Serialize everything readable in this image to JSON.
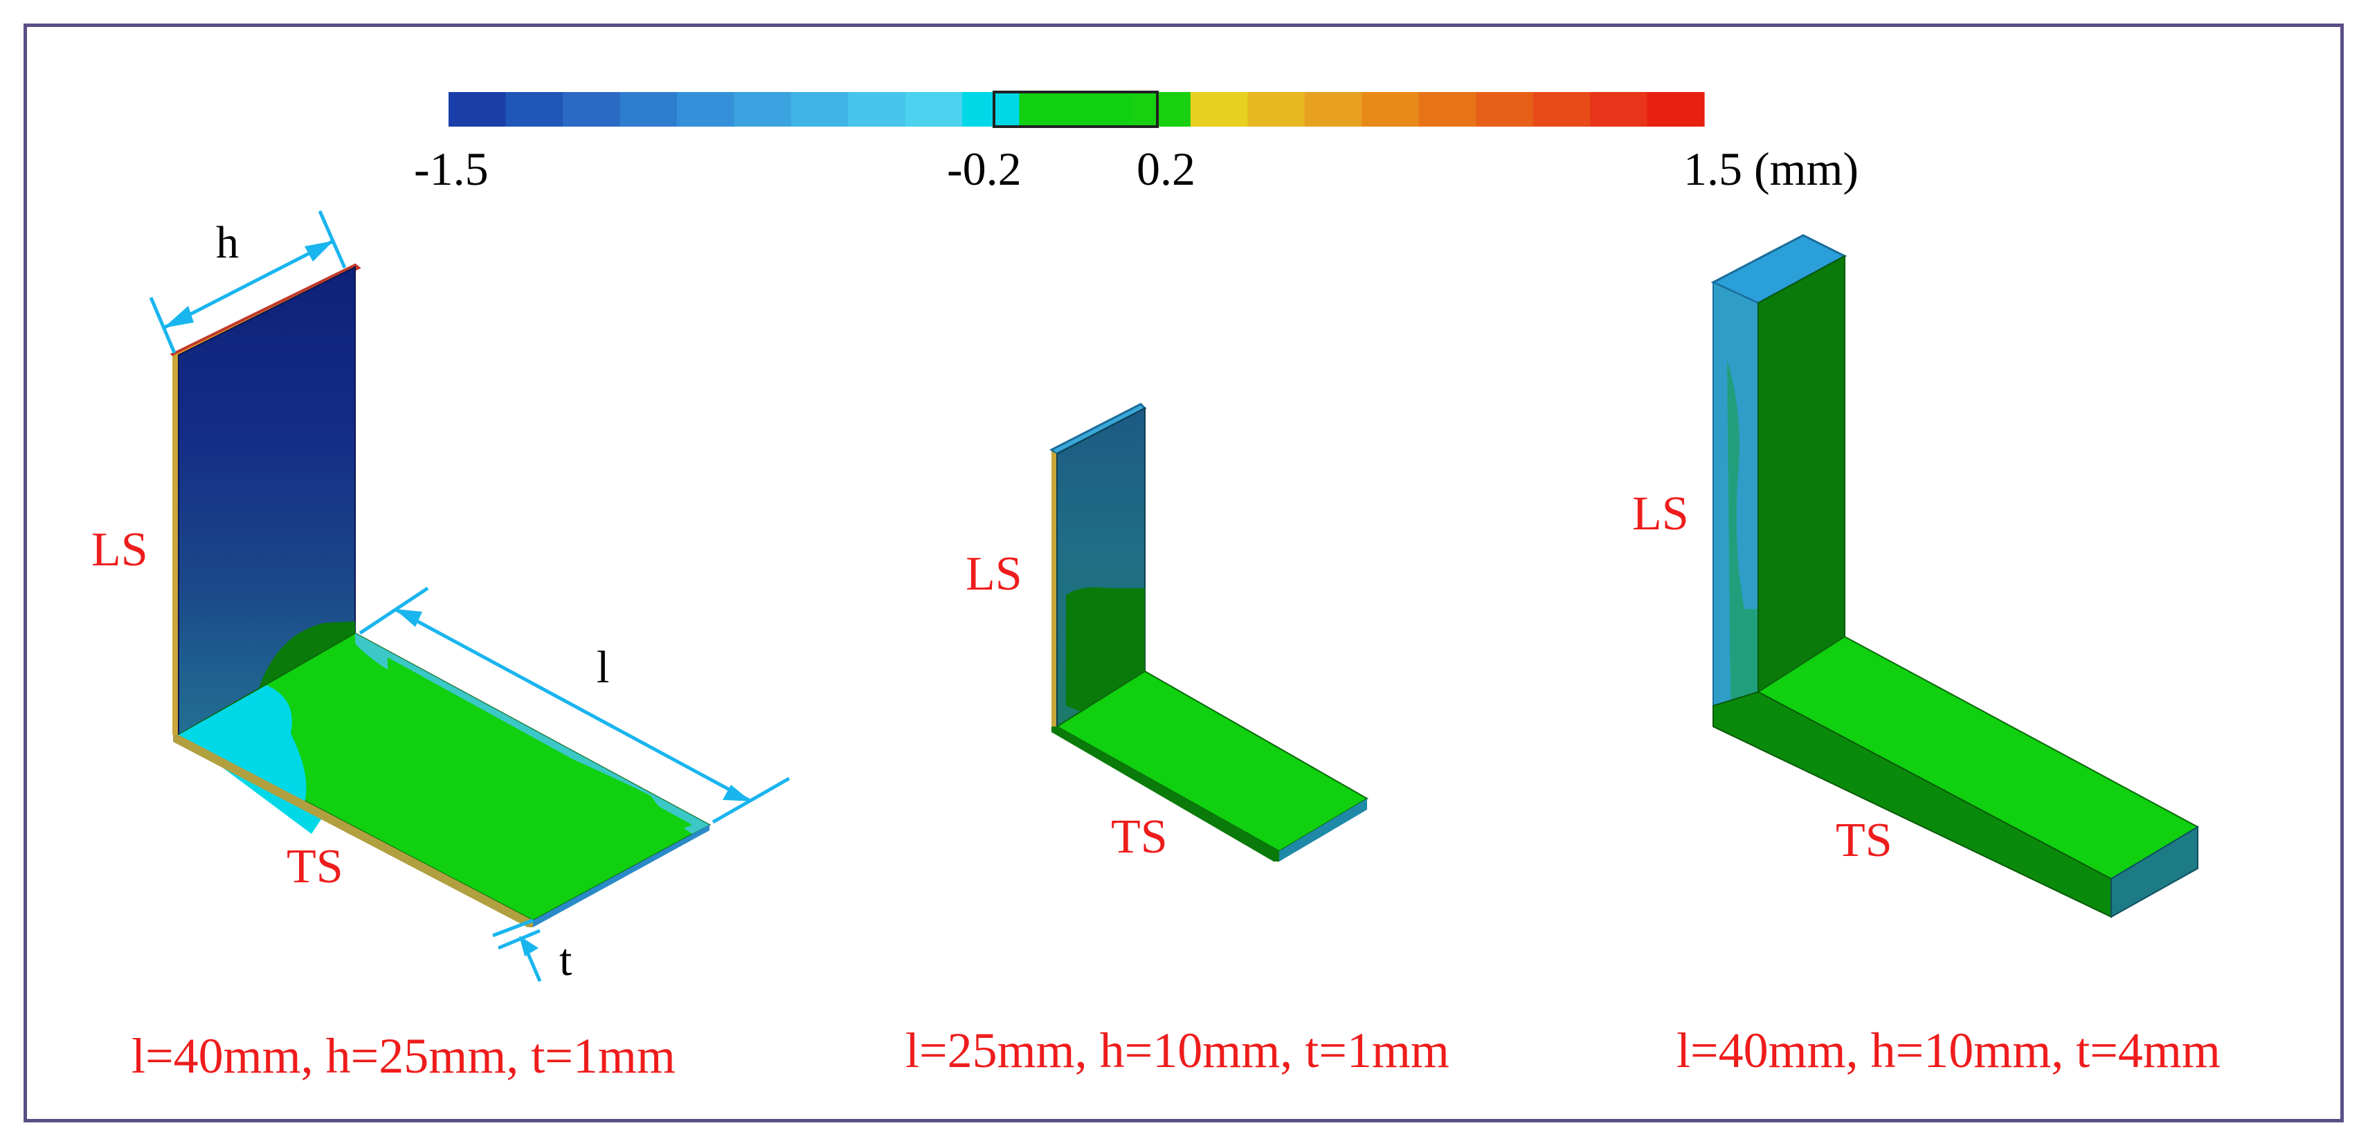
{
  "colorbar": {
    "ticks": [
      "-1.5",
      "-0.2",
      "0.2",
      "1.5 (mm)"
    ],
    "min": -1.5,
    "max": 1.5,
    "colors": [
      "#1a3fa8",
      "#1f56b8",
      "#2a6ac4",
      "#2f7dcf",
      "#3490d8",
      "#3aa2df",
      "#40b3e6",
      "#46c4ec",
      "#4ad2ee",
      "#00d8e8",
      "#10d010",
      "#10d010",
      "#18d010",
      "#e8d020",
      "#e8b820",
      "#e8a020",
      "#e88a18",
      "#e87418",
      "#e86018",
      "#e84a18",
      "#e83418",
      "#e82010"
    ]
  },
  "specimens": [
    {
      "dims": {
        "h": "h",
        "l": "l",
        "t": "t"
      },
      "labels": {
        "ls": "LS",
        "ts": "TS"
      },
      "caption": "l=40mm, h=25mm, t=1mm"
    },
    {
      "labels": {
        "ls": "LS",
        "ts": "TS"
      },
      "caption": "l=25mm, h=10mm, t=1mm"
    },
    {
      "labels": {
        "ls": "LS",
        "ts": "TS"
      },
      "caption": "l=40mm, h=10mm, t=4mm"
    }
  ],
  "colors": {
    "frame": "#5b4f86",
    "label_red": "#ee1c1c",
    "dim_arrow": "#19b5ee",
    "deep_blue": "#10237a",
    "mid_blue": "#1f4f86",
    "teal": "#1f6e86",
    "green": "#10d010",
    "dark_green": "#0a7a0a",
    "cyan": "#00d8e8"
  }
}
